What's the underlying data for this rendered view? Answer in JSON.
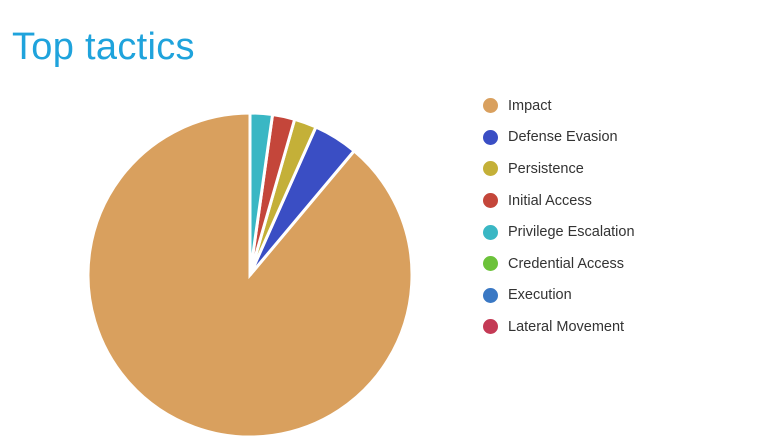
{
  "chart_data": {
    "type": "pie",
    "title": "Top tactics",
    "legend_position": "right",
    "slices": [
      {
        "label": "Impact",
        "value": 40,
        "color": "#d9a05e"
      },
      {
        "label": "Defense Evasion",
        "value": 2,
        "color": "#3a4ec4"
      },
      {
        "label": "Persistence",
        "value": 1,
        "color": "#c4b038"
      },
      {
        "label": "Initial Access",
        "value": 1,
        "color": "#c4463a"
      },
      {
        "label": "Privilege Escalation",
        "value": 1,
        "color": "#3ab7c4"
      },
      {
        "label": "Credential Access",
        "value": 0,
        "color": "#6cc23a"
      },
      {
        "label": "Execution",
        "value": 0,
        "color": "#3a78c4"
      },
      {
        "label": "Lateral Movement",
        "value": 0,
        "color": "#c43a55"
      }
    ]
  }
}
